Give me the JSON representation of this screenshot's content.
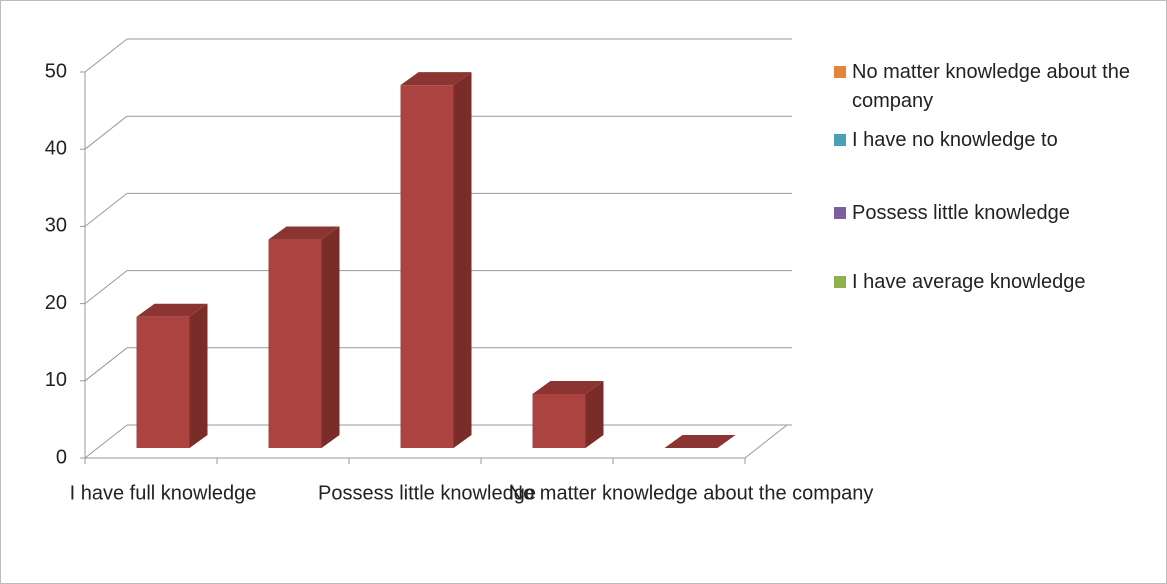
{
  "chart_data": {
    "type": "bar3d",
    "categories": [
      "I have full knowledge",
      null,
      "Possess little knowledge",
      null,
      "No matter knowledge about the company"
    ],
    "values": [
      17,
      27,
      47,
      7,
      0
    ],
    "color": "#ab4440",
    "ylim": [
      0,
      50
    ],
    "yticks": [
      0,
      10,
      20,
      30,
      40,
      50
    ],
    "grid": true,
    "legend": [
      {
        "name": "No matter knowledge about the company",
        "color": "#e3843a"
      },
      {
        "name": "I have no knowledge to",
        "color": "#4aa0b5"
      },
      {
        "name": "Possess little knowledge",
        "color": "#7d5fa0"
      },
      {
        "name": "I have average knowledge",
        "color": "#8eb04e"
      }
    ]
  }
}
